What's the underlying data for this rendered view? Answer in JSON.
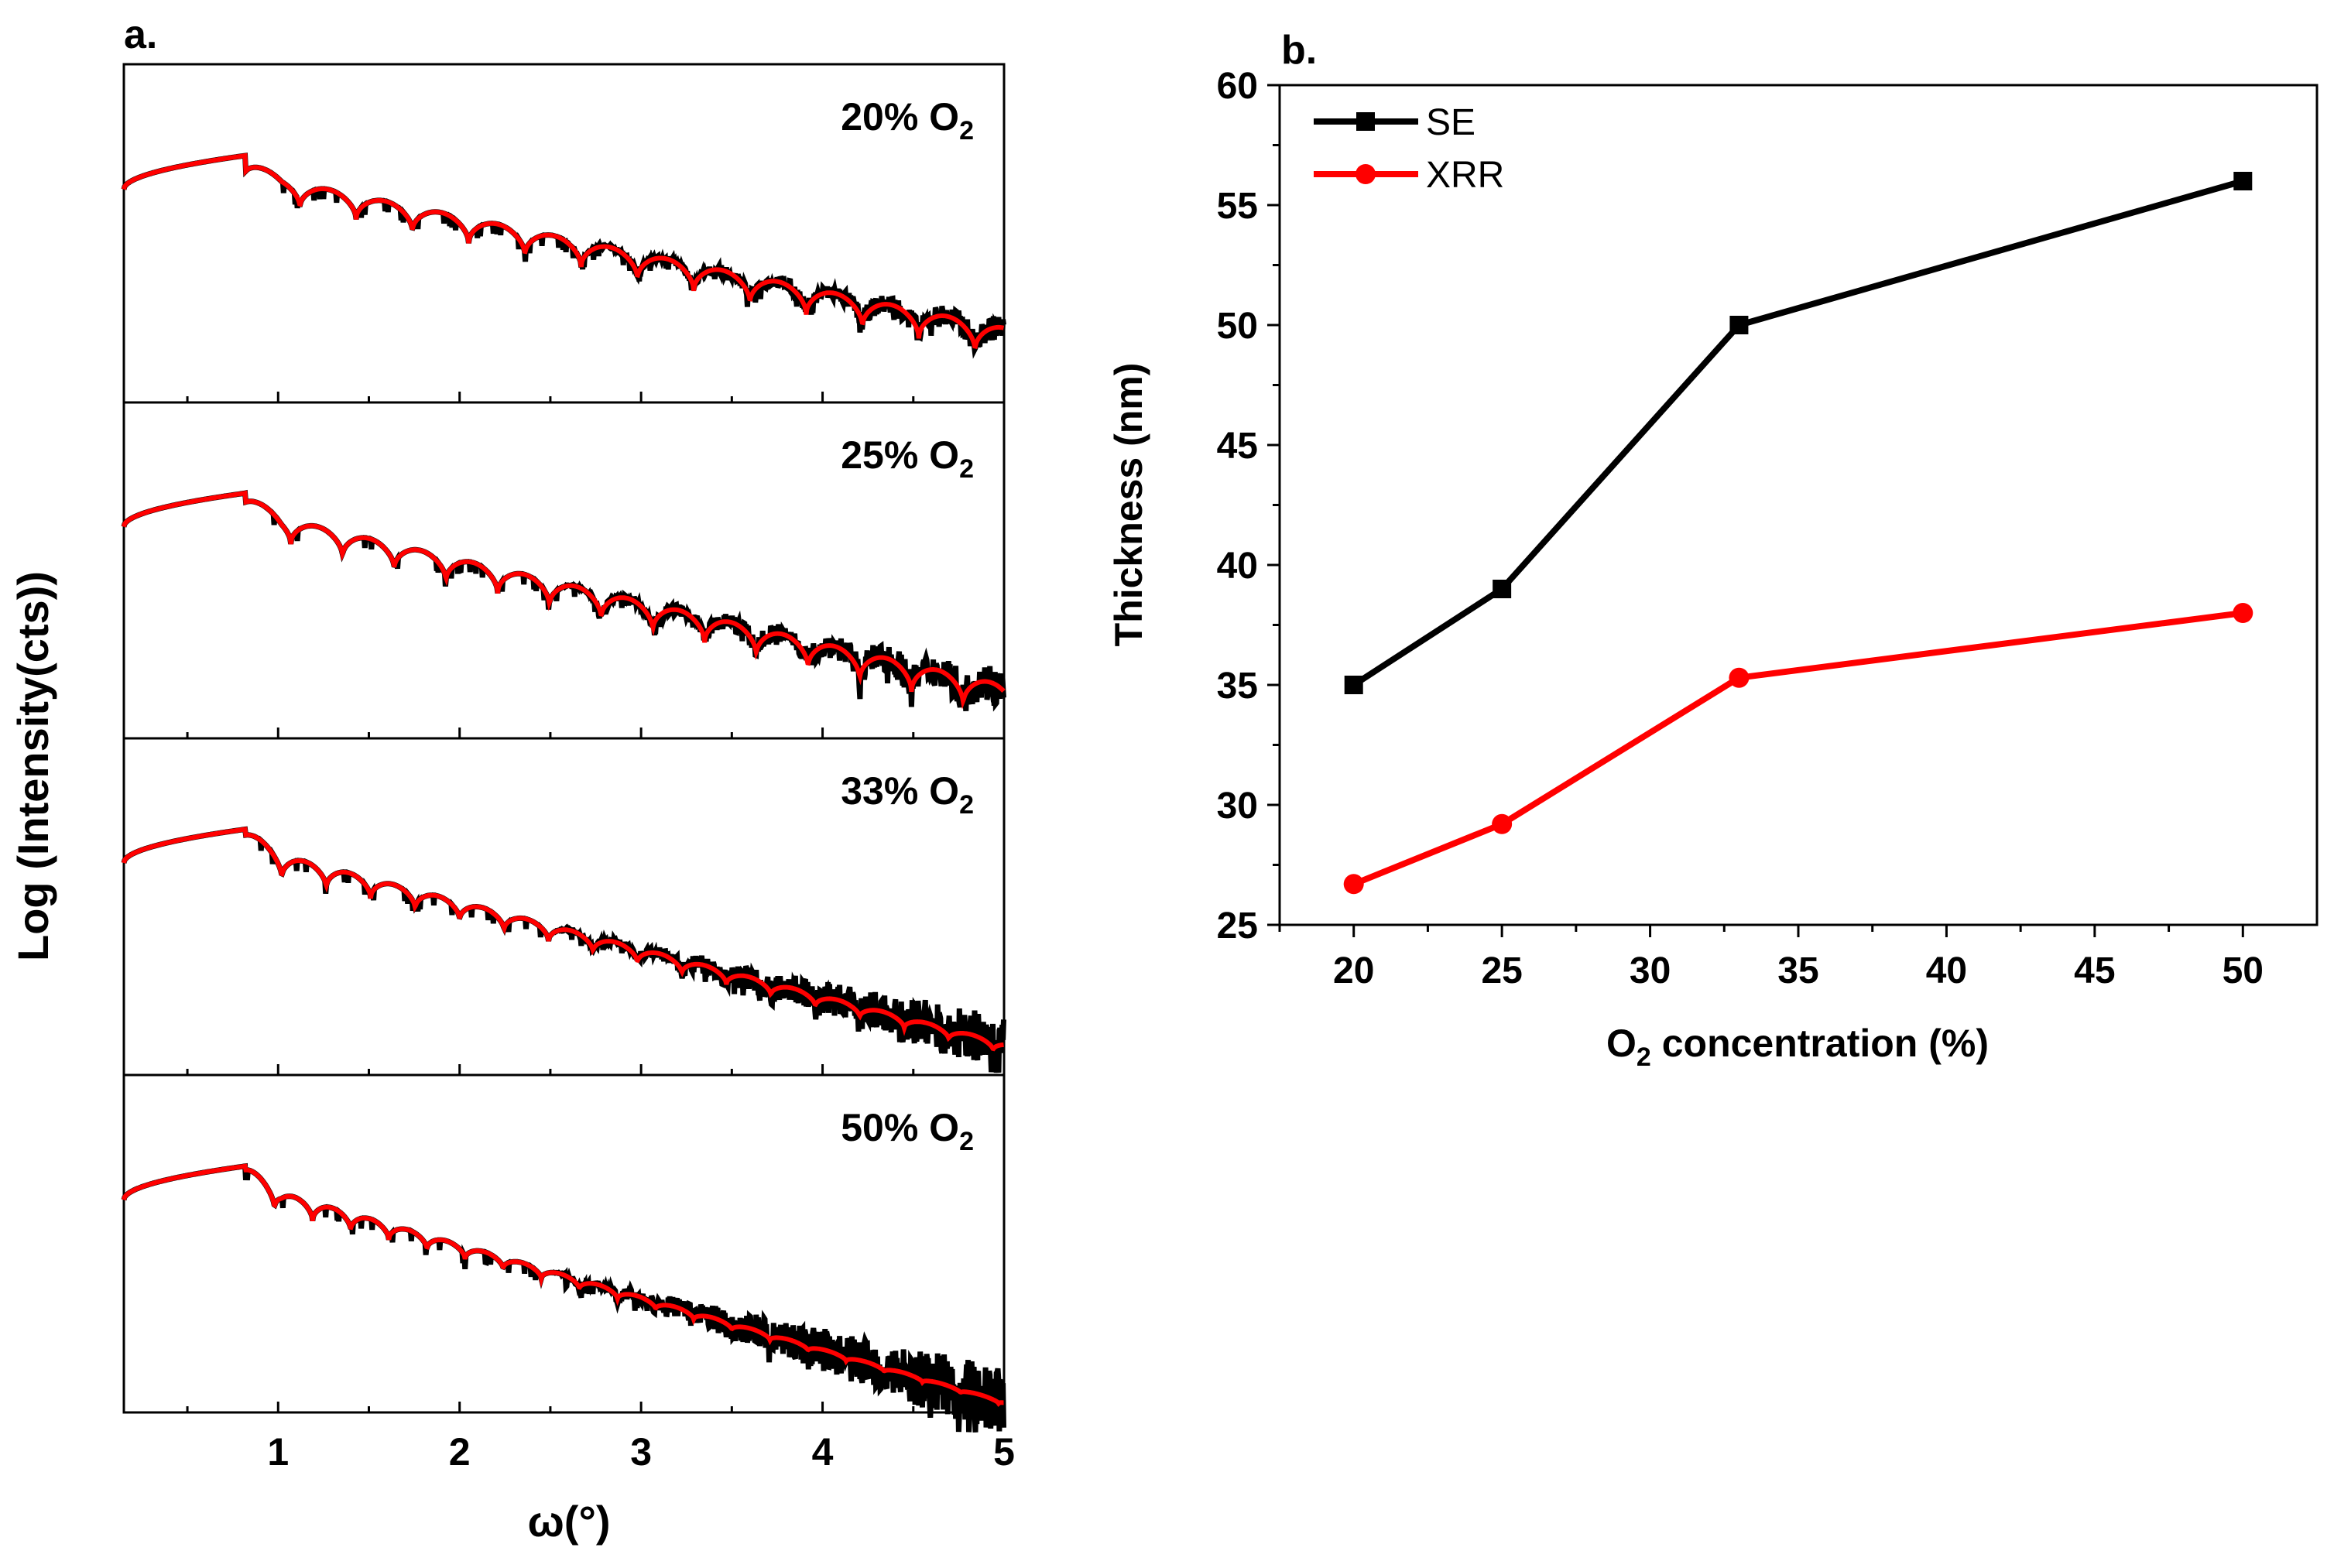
{
  "chart_data": [
    {
      "type": "line",
      "panel_label": "a.",
      "xlabel": "ω(°)",
      "ylabel": "Log (Intensity(cts))",
      "xlim": [
        0.15,
        5
      ],
      "xticks": [
        "1",
        "2",
        "3",
        "4",
        "5"
      ],
      "xtick_values": [
        1,
        2,
        3,
        4,
        5
      ],
      "series_colors": {
        "measured": "#000000",
        "fit": "#ff0000"
      },
      "panels": [
        {
          "label": "20% O",
          "sub": "2",
          "fringe_period_deg": 0.31,
          "first_min_deg": 1.12
        },
        {
          "label": "25% O",
          "sub": "2",
          "fringe_period_deg": 0.285,
          "first_min_deg": 1.07
        },
        {
          "label": "33% O",
          "sub": "2",
          "fringe_period_deg": 0.245,
          "first_min_deg": 1.02
        },
        {
          "label": "50% O",
          "sub": "2",
          "fringe_period_deg": 0.21,
          "first_min_deg": 0.98
        }
      ]
    },
    {
      "type": "line",
      "panel_label": "b.",
      "xlabel": "O",
      "xlabel_sub": "2",
      "xlabel_rest": " concentration (%)",
      "ylabel": "Thickness (nm)",
      "xlim": [
        17.5,
        52.5
      ],
      "ylim": [
        25,
        60
      ],
      "xticks": [
        "20",
        "25",
        "30",
        "35",
        "40",
        "45",
        "50"
      ],
      "xtick_values": [
        20,
        25,
        30,
        35,
        40,
        45,
        50
      ],
      "yticks": [
        "25",
        "30",
        "35",
        "40",
        "45",
        "50",
        "55",
        "60"
      ],
      "ytick_values": [
        25,
        30,
        35,
        40,
        45,
        50,
        55,
        60
      ],
      "legend_position": "top-left",
      "x": [
        20,
        25,
        33,
        50
      ],
      "series": [
        {
          "name": "SE",
          "color": "#000000",
          "marker": "square",
          "values": [
            35,
            39,
            50,
            56
          ]
        },
        {
          "name": "XRR",
          "color": "#ff0000",
          "marker": "circle",
          "values": [
            26.7,
            29.2,
            35.3,
            38.0
          ]
        }
      ]
    }
  ]
}
